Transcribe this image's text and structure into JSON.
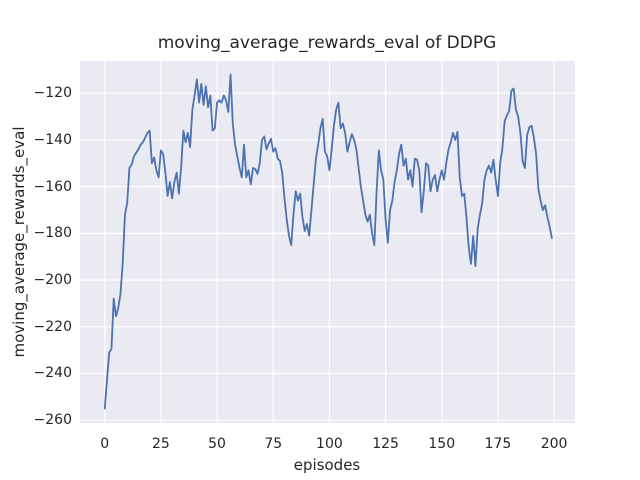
{
  "style": {
    "figure_bg": "#ffffff",
    "axes_bg": "#eaeaf2",
    "grid_color": "#ffffff",
    "text_color": "#262626",
    "line_color": "#4c72b0"
  },
  "chart_data": {
    "type": "line",
    "title": "moving_average_rewards_eval of DDPG",
    "xlabel": "episodes",
    "ylabel": "moving_average_rewards_eval",
    "grid": true,
    "legend": "none",
    "xlim": [
      -11,
      209.3
    ],
    "ylim": [
      -261.2,
      -106.2
    ],
    "x_ticks": [
      0,
      25,
      50,
      75,
      100,
      125,
      150,
      175,
      200
    ],
    "x_tick_labels": [
      "0",
      "25",
      "50",
      "75",
      "100",
      "125",
      "150",
      "175",
      "200"
    ],
    "y_ticks": [
      -260,
      -240,
      -220,
      -200,
      -180,
      -160,
      -140,
      -120
    ],
    "y_tick_labels": [
      "−260",
      "−240",
      "−220",
      "−200",
      "−180",
      "−160",
      "−140",
      "−120"
    ],
    "series": [
      {
        "name": "moving_average_rewards_eval",
        "color": "#4c72b0",
        "x_start": 0,
        "x_step": 1,
        "y": [
          -255,
          -243,
          -231,
          -229.5,
          -208,
          -215.5,
          -212,
          -206,
          -193,
          -172,
          -167,
          -152,
          -150.5,
          -147,
          -145.5,
          -144,
          -142,
          -141,
          -139,
          -137,
          -136,
          -150,
          -147.5,
          -153,
          -156,
          -144.5,
          -146,
          -154,
          -164,
          -158,
          -165,
          -158,
          -154,
          -163,
          -152,
          -136,
          -141,
          -137,
          -143,
          -127,
          -121,
          -114,
          -124,
          -116,
          -125,
          -117,
          -126,
          -121,
          -136,
          -135,
          -124,
          -123,
          -124,
          -121,
          -123,
          -128,
          -112,
          -133,
          -142,
          -147,
          -152,
          -156,
          -142,
          -156,
          -153,
          -159,
          -152,
          -152.5,
          -154.5,
          -150,
          -140,
          -138.5,
          -144,
          -141.5,
          -139.5,
          -145,
          -143.5,
          -148,
          -149,
          -154,
          -165,
          -174,
          -181,
          -185,
          -172,
          -162,
          -166,
          -163,
          -173,
          -179,
          -176,
          -181,
          -170,
          -159,
          -148,
          -142,
          -135,
          -131,
          -145,
          -147,
          -153,
          -144,
          -134,
          -127,
          -124,
          -135,
          -133,
          -137,
          -145,
          -141,
          -137.5,
          -140,
          -144,
          -152,
          -160,
          -166,
          -172,
          -175,
          -172,
          -180,
          -185,
          -162,
          -144.5,
          -153,
          -157,
          -174,
          -184,
          -170,
          -166,
          -158,
          -153,
          -146,
          -142,
          -151,
          -148,
          -157,
          -153,
          -160,
          -148,
          -148.5,
          -153,
          -171,
          -162,
          -150,
          -151,
          -162,
          -157,
          -155,
          -162,
          -157,
          -153,
          -157,
          -150,
          -144,
          -141,
          -137,
          -140,
          -136.5,
          -156,
          -164,
          -163,
          -173,
          -186,
          -193,
          -181,
          -194,
          -178,
          -172,
          -167,
          -157,
          -153,
          -151,
          -154,
          -148.5,
          -157,
          -164,
          -150,
          -143.5,
          -132,
          -129.5,
          -127.5,
          -119,
          -118,
          -127,
          -130,
          -137,
          -149,
          -152,
          -138,
          -134.5,
          -134,
          -139,
          -146,
          -161,
          -166,
          -170,
          -168,
          -173,
          -177,
          -182
        ]
      }
    ]
  }
}
